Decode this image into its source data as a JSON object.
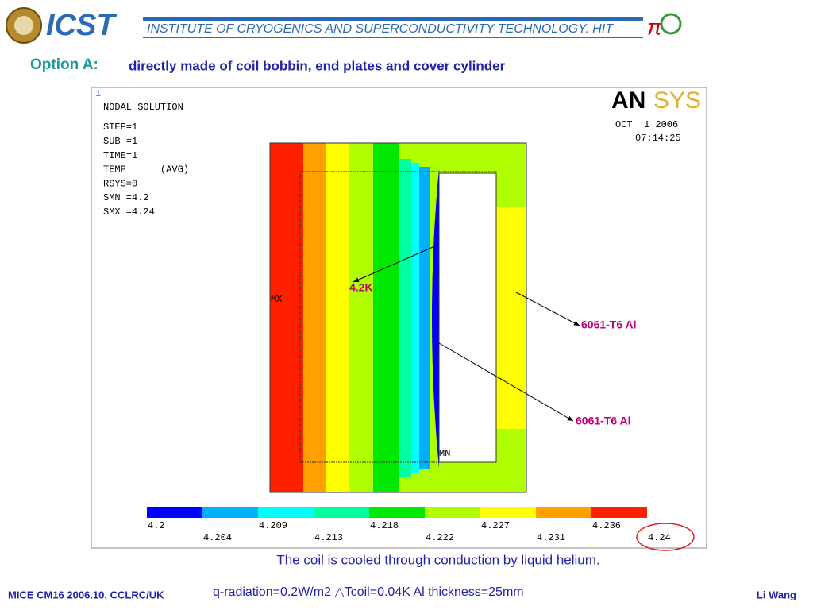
{
  "header": {
    "logo": "ICST",
    "institute": "INSTITUTE OF CRYOGENICS AND SUPERCONDUCTIVITY TECHNOLOGY. HIT"
  },
  "title": {
    "label": "Option A:",
    "text": "directly made of coil bobbin, end plates and cover cylinder"
  },
  "plot": {
    "window": "1",
    "heading": "NODAL SOLUTION",
    "info": [
      "STEP=1",
      "SUB =1",
      "TIME=1",
      "TEMP      (AVG)",
      "RSYS=0",
      "SMN =4.2",
      "SMX =4.24"
    ],
    "brand_a": "AN",
    "brand_b": "SYS",
    "date": "OCT  1 2006",
    "time": "07:14:25",
    "max_marker": "MX",
    "min_marker": "MN",
    "legend": [
      "4.2",
      "4.204",
      "4.209",
      "4.213",
      "4.218",
      "4.222",
      "4.227",
      "4.231",
      "4.236",
      "4.24"
    ]
  },
  "annotations": {
    "coil": "4.2K",
    "cover": "6061-T6 Al",
    "bobbin": "6061-T6 Al"
  },
  "caption": "The coil is cooled through conduction by liquid helium.",
  "footer": {
    "left": "MICE CM16 2006.10, CCLRC/UK",
    "center": "q-radiation=0.2W/m2 △Tcoil=0.04K  Al thickness=25mm",
    "right": "Li Wang"
  }
}
